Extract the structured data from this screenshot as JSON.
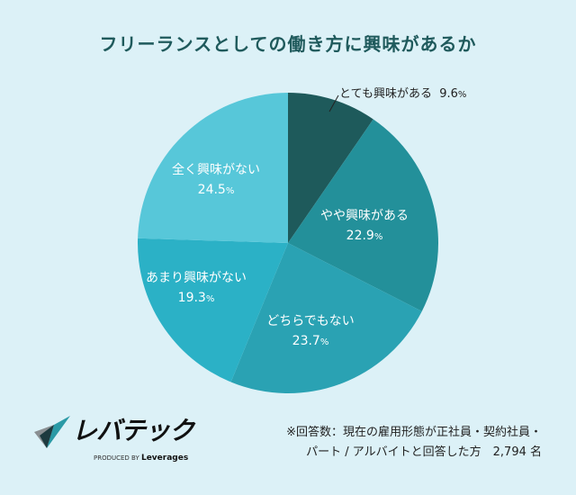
{
  "chart_data": {
    "type": "pie",
    "title": "フリーランスとしての働き方に興味があるか",
    "categories": [
      "とても興味がある",
      "やや興味がある",
      "どちらでもない",
      "あまり興味がない",
      "全く興味がない"
    ],
    "values": [
      9.6,
      22.9,
      23.7,
      19.3,
      24.5
    ],
    "unit": "%",
    "colors": [
      "#1e5a5b",
      "#23909a",
      "#2aa2b3",
      "#2bb1c6",
      "#57c7d9"
    ],
    "start": "top, clockwise"
  },
  "logo": {
    "brand": "レバテック",
    "sub_prefix": "PRODUCED BY",
    "sub_name": "Leverages"
  },
  "note": {
    "line1": "※回答数：現在の雇用形態が正社員・契約社員・",
    "line2": "パート / アルバイトと回答した方　2,794 名"
  },
  "background": "#dcf1f7"
}
